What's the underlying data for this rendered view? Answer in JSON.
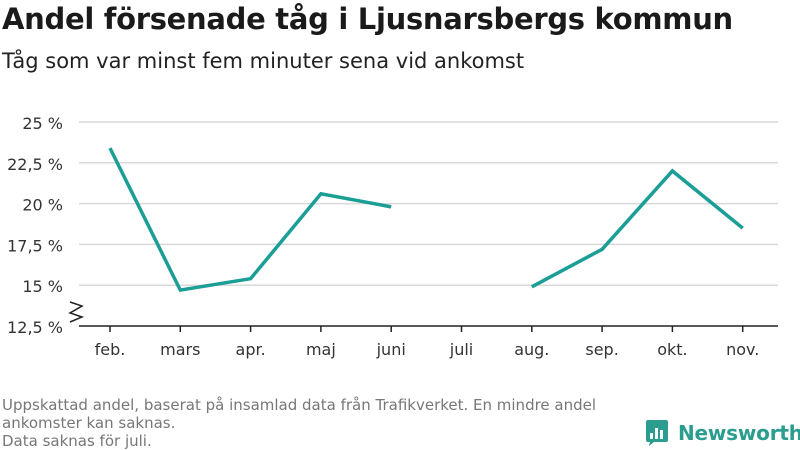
{
  "title": "Andel försenade tåg i Ljusnarsbergs kommun",
  "subtitle": "Tåg som var minst fem minuter sena vid ankomst",
  "footnote": {
    "line1": "Uppskattad andel, baserat på insamlad data från Trafikverket. En mindre andel",
    "line2": "ankomster kan saknas.",
    "line3": "Data saknas för juli."
  },
  "brand": {
    "name": "Newsworthy",
    "icon": "newsworthy-logo-icon",
    "color": "#2a9d8f"
  },
  "chart_data": {
    "type": "line",
    "categories": [
      "feb.",
      "mars",
      "apr.",
      "maj",
      "juni",
      "juli",
      "aug.",
      "sep.",
      "okt.",
      "nov."
    ],
    "series": [
      {
        "values": [
          23.4,
          14.7,
          15.4,
          20.6,
          19.8,
          null,
          14.9,
          17.2,
          22.0,
          18.5
        ]
      }
    ],
    "ylim": [
      12.5,
      25
    ],
    "yticks": [
      12.5,
      15,
      17.5,
      20,
      22.5,
      25
    ],
    "ytick_labels": [
      "12,5 %",
      "15 %",
      "17,5 %",
      "20 %",
      "22,5 %",
      "25 %"
    ],
    "axis_break": true,
    "grid": true,
    "line_color": "#1a9e96",
    "grid_color": "#d9d9d9",
    "xlabel": "",
    "ylabel": ""
  }
}
